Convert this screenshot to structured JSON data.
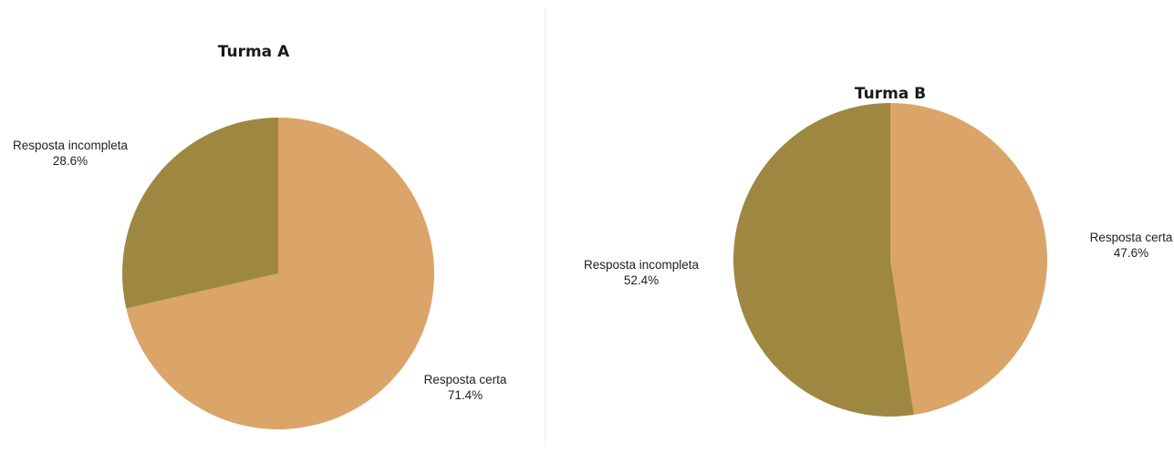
{
  "chart_data": [
    {
      "type": "pie",
      "title": "Turma A",
      "slices": [
        {
          "label": "Resposta certa",
          "value": 71.4,
          "value_label": "71.4%",
          "color": "#dba468"
        },
        {
          "label": "Resposta incompleta",
          "value": 28.6,
          "value_label": "28.6%",
          "color": "#9e8841"
        }
      ]
    },
    {
      "type": "pie",
      "title": "Turma B",
      "slices": [
        {
          "label": "Resposta certa",
          "value": 47.6,
          "value_label": "47.6%",
          "color": "#dba468"
        },
        {
          "label": "Resposta incompleta",
          "value": 52.4,
          "value_label": "52.4%",
          "color": "#9e8841"
        }
      ]
    }
  ]
}
